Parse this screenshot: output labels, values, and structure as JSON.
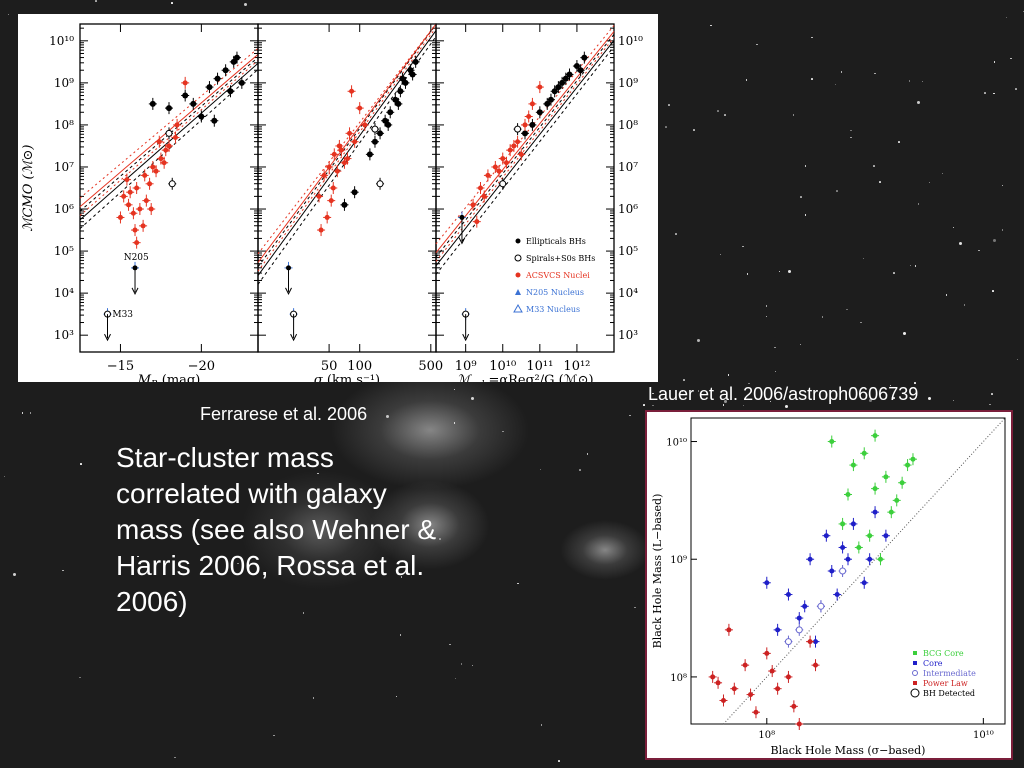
{
  "slide": {
    "caption_left": "Ferrarese et al. 2006",
    "caption_right": "Lauer et al. 2006/astroph0606739",
    "body_lines": [
      "Star-cluster mass",
      "correlated with galaxy",
      "mass (see also Wehner &",
      "Harris 2006, Rossa et al.",
      "2006)"
    ]
  },
  "colors": {
    "ellipticals": "#000000",
    "acsvcs": "#e53320",
    "n205": "#3b72d4",
    "m33": "#3b72d4",
    "bcg_core": "#3ccf3c",
    "core": "#1f1fc8",
    "intermediate": "#6a6ad0",
    "power_law": "#cc2222",
    "frame": "#7a1e3a"
  },
  "chart_data": [
    {
      "type": "scatter",
      "panel": "left",
      "xlabel_sym": "M",
      "xlabel_sub": "B",
      "xlabel_rest": "(mag)",
      "ylabel": "ℳCMO (ℳ⊙)",
      "xticks": [
        "−15",
        "−20"
      ],
      "yticks": [
        "10³",
        "10⁴",
        "10⁵",
        "10⁶",
        "10⁷",
        "10⁸",
        "10⁹",
        "10¹⁰"
      ],
      "annotations": [
        "N205",
        "M33"
      ],
      "series": [
        {
          "group": "ellipticals",
          "x": [
            -21.5,
            -22.0,
            -21.0,
            -20.5,
            -19.5,
            -22.2,
            -20.0,
            -19.0,
            -18.0,
            -21.8,
            -17.0,
            -22.5,
            -20.8
          ],
          "y": [
            9.3,
            9.5,
            9.1,
            8.9,
            8.5,
            9.6,
            8.2,
            8.7,
            8.4,
            8.8,
            8.5,
            9.0,
            8.1
          ]
        },
        {
          "group": "spirals_s0",
          "x": [
            -18.0,
            -18.2
          ],
          "y": [
            7.8,
            6.6
          ]
        },
        {
          "group": "acsvcs",
          "x": [
            -15.5,
            -16.0,
            -16.5,
            -17.0,
            -15.0,
            -15.2,
            -16.2,
            -17.5,
            -18.0,
            -16.8,
            -15.8,
            -17.2,
            -16.6,
            -15.4,
            -18.5,
            -17.8,
            -16.4,
            -15.6,
            -17.4,
            -16.0,
            -18.4,
            -16.9,
            -15.9,
            -17.7,
            -19.0
          ],
          "y": [
            6.1,
            6.5,
            6.8,
            7.0,
            5.8,
            6.3,
            6.0,
            7.2,
            7.5,
            6.6,
            5.9,
            6.9,
            6.2,
            6.7,
            8.0,
            7.4,
            5.6,
            6.4,
            7.6,
            5.2,
            7.7,
            6.0,
            5.5,
            7.1,
            9.0
          ]
        },
        {
          "group": "n205",
          "x": [
            -15.9
          ],
          "y": [
            4.6
          ]
        },
        {
          "group": "m33",
          "x": [
            -14.2
          ],
          "y": [
            3.5
          ]
        }
      ],
      "xlim": [
        -12.5,
        -23.5
      ],
      "ylim": [
        2.6,
        10.4
      ]
    },
    {
      "type": "scatter",
      "panel": "middle",
      "xlabel_sym": "σ",
      "xlabel_sub": "",
      "xlabel_rest": "(km s⁻¹)",
      "xticks": [
        "50",
        "100",
        "500"
      ],
      "series": [
        {
          "group": "ellipticals",
          "x": [
            1.95,
            2.1,
            2.2,
            2.25,
            2.3,
            2.35,
            2.4,
            2.45,
            2.5,
            2.55,
            2.38,
            2.28,
            2.42,
            2.52,
            2.15,
            1.85
          ],
          "y": [
            6.4,
            7.3,
            7.8,
            8.1,
            8.3,
            8.6,
            8.8,
            9.0,
            9.3,
            9.5,
            8.5,
            8.0,
            9.1,
            9.2,
            7.6,
            6.1
          ]
        },
        {
          "group": "spirals_s0",
          "x": [
            2.15,
            2.2
          ],
          "y": [
            7.9,
            6.6
          ]
        },
        {
          "group": "acsvcs",
          "x": [
            1.6,
            1.65,
            1.7,
            1.75,
            1.8,
            1.85,
            1.9,
            1.95,
            2.0,
            1.72,
            1.78,
            1.68,
            1.88,
            1.62,
            1.82,
            2.05,
            1.92,
            1.74
          ],
          "y": [
            6.3,
            6.8,
            7.0,
            7.3,
            7.5,
            7.1,
            7.8,
            7.6,
            8.4,
            6.2,
            6.9,
            5.8,
            7.2,
            5.5,
            7.4,
            8.0,
            8.8,
            6.5
          ]
        },
        {
          "group": "n205",
          "x": [
            1.3
          ],
          "y": [
            4.6
          ]
        },
        {
          "group": "m33",
          "x": [
            1.35
          ],
          "y": [
            3.5
          ]
        }
      ],
      "xlim": [
        1.0,
        2.75
      ],
      "ylim": [
        2.6,
        10.4
      ]
    },
    {
      "type": "scatter",
      "panel": "right",
      "xlabel_sym": "ℳ",
      "xlabel_sub": "gal",
      "xlabel_rest": "=αReσ²/G (ℳ⊙)",
      "xticks": [
        "10⁹",
        "10¹⁰",
        "10¹¹",
        "10¹²"
      ],
      "legend": [
        "Ellipticals BHs",
        "Spirals+S0s BHs",
        "ACSVCS Nuclei",
        "N205 Nucleus",
        "M33 Nucleus"
      ],
      "legend_position": "bottom-right",
      "series": [
        {
          "group": "ellipticals",
          "x": [
            10.8,
            11.0,
            11.2,
            11.4,
            11.6,
            11.8,
            12.0,
            12.2,
            11.3,
            11.7,
            10.6,
            11.5,
            12.1
          ],
          "y": [
            8.0,
            8.3,
            8.5,
            8.8,
            9.0,
            9.2,
            9.4,
            9.6,
            8.6,
            9.1,
            7.8,
            8.9,
            9.3
          ]
        },
        {
          "group": "spirals_s0",
          "x": [
            10.0,
            10.4
          ],
          "y": [
            6.6,
            7.9
          ]
        },
        {
          "group": "acsvcs",
          "x": [
            9.2,
            9.4,
            9.6,
            9.8,
            10.0,
            10.2,
            10.4,
            10.6,
            10.8,
            11.0,
            9.5,
            9.9,
            10.3,
            10.7,
            9.3,
            10.1,
            10.5
          ],
          "y": [
            6.1,
            6.5,
            6.8,
            7.0,
            7.2,
            7.4,
            7.6,
            8.0,
            8.5,
            8.9,
            6.3,
            6.9,
            7.5,
            8.2,
            5.7,
            7.1,
            7.3
          ]
        },
        {
          "group": "n205",
          "x": [
            8.9
          ],
          "y": [
            5.8
          ]
        },
        {
          "group": "m33",
          "x": [
            9.0
          ],
          "y": [
            3.5
          ]
        }
      ],
      "xlim": [
        8.2,
        13.0
      ],
      "ylim": [
        2.6,
        10.4
      ]
    },
    {
      "type": "scatter",
      "panel": "bottom",
      "xlabel": "Black Hole Mass (σ−based)",
      "ylabel": "Black Hole Mass (L−based)",
      "xticks": [
        "10⁸",
        "10¹⁰"
      ],
      "yticks": [
        "10⁸",
        "10⁹",
        "10¹⁰"
      ],
      "legend": [
        "BCG Core",
        "Core",
        "Intermediate",
        "Power Law",
        "BH Detected"
      ],
      "legend_position": "bottom-right",
      "series": [
        {
          "group": "bcg_core",
          "x": [
            8.6,
            8.8,
            8.9,
            9.0,
            9.1,
            9.2,
            9.3,
            8.7,
            8.95,
            9.05,
            9.15,
            8.85,
            9.25,
            9.35,
            8.75,
            9.0
          ],
          "y": [
            10.0,
            9.8,
            9.9,
            9.6,
            9.7,
            9.5,
            9.8,
            9.3,
            9.2,
            9.0,
            9.4,
            9.1,
            9.65,
            9.85,
            9.55,
            10.05
          ]
        },
        {
          "group": "core",
          "x": [
            8.0,
            8.2,
            8.4,
            8.5,
            8.6,
            8.7,
            8.8,
            8.9,
            9.0,
            8.3,
            8.45,
            8.65,
            8.75,
            8.55,
            8.1,
            8.95,
            9.1,
            8.35
          ],
          "y": [
            8.8,
            8.7,
            9.0,
            8.6,
            8.9,
            9.1,
            9.3,
            8.8,
            9.4,
            8.5,
            8.3,
            8.7,
            9.0,
            9.2,
            8.4,
            9.0,
            9.2,
            8.6
          ]
        },
        {
          "group": "power_law",
          "x": [
            7.5,
            7.6,
            7.7,
            7.8,
            7.9,
            8.0,
            8.1,
            8.2,
            8.3,
            8.4,
            7.65,
            7.85,
            8.05,
            8.25,
            7.55,
            8.45
          ],
          "y": [
            8.0,
            7.8,
            7.9,
            8.1,
            7.7,
            8.2,
            7.9,
            8.0,
            7.6,
            8.3,
            8.4,
            7.85,
            8.05,
            7.75,
            7.95,
            8.1
          ]
        },
        {
          "group": "intermediate",
          "x": [
            8.3,
            8.5,
            8.7,
            8.2
          ],
          "y": [
            8.4,
            8.6,
            8.9,
            8.3
          ]
        }
      ],
      "xlim": [
        7.3,
        10.2
      ],
      "ylim": [
        7.6,
        10.2
      ]
    }
  ]
}
